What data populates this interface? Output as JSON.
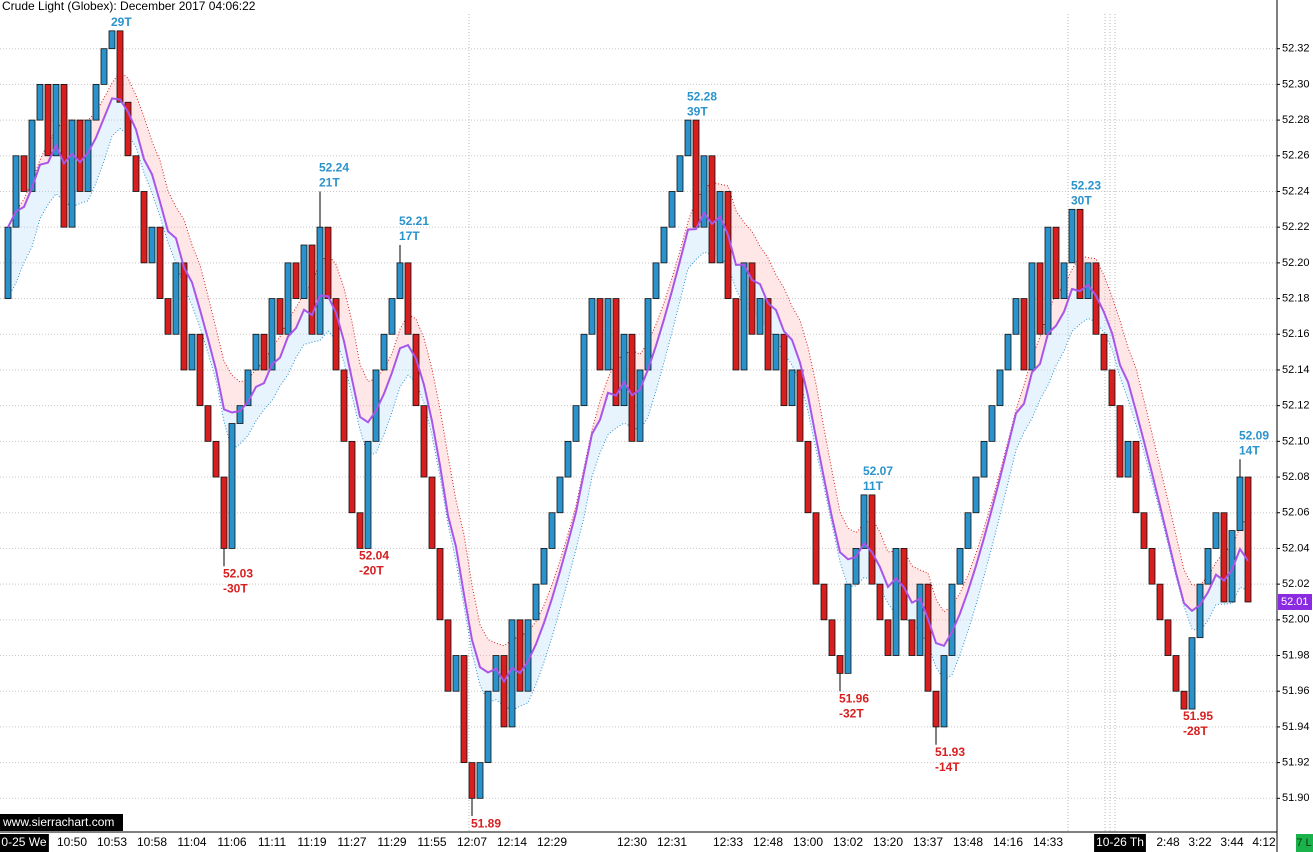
{
  "chart_data": {
    "type": "candlestick",
    "title": "Crude Light (Globex): December 2017 04:06:22",
    "categories": [
      null,
      null,
      "0-25 We",
      null,
      null,
      null,
      null,
      null,
      "10:50",
      null,
      null,
      null,
      null,
      "10:53",
      null,
      null,
      null,
      null,
      "10:58",
      null,
      null,
      null,
      null,
      "11:04",
      null,
      null,
      null,
      null,
      "11:06",
      null,
      null,
      null,
      null,
      "11:11",
      null,
      null,
      null,
      null,
      "11:19",
      null,
      null,
      null,
      null,
      "11:27",
      null,
      null,
      null,
      null,
      "11:29",
      null,
      null,
      null,
      null,
      "11:55",
      null,
      null,
      null,
      null,
      "12:07",
      null,
      null,
      null,
      null,
      "12:14",
      null,
      null,
      null,
      null,
      "12:29",
      null,
      null,
      null,
      null,
      null,
      null,
      null,
      null,
      null,
      "12:30",
      null,
      null,
      null,
      null,
      "12:31",
      null,
      null,
      null,
      null,
      null,
      null,
      "12:33",
      null,
      null,
      null,
      null,
      "12:48",
      null,
      null,
      null,
      null,
      "13:00",
      null,
      null,
      null,
      null,
      "13:02",
      null,
      null,
      null,
      null,
      "13:20",
      null,
      null,
      null,
      null,
      "13:37",
      null,
      null,
      null,
      null,
      "13:48",
      null,
      null,
      null,
      null,
      "14:16",
      null,
      null,
      null,
      null,
      "14:33",
      null,
      null,
      null,
      null,
      null,
      null,
      null,
      null,
      "10-26 Th",
      null,
      null,
      null,
      null,
      null,
      "2:48",
      null,
      null,
      null,
      "3:22",
      null,
      null,
      null,
      "3:44",
      null,
      null,
      null,
      "4:12"
    ],
    "open": [
      52.18,
      52.22,
      52.26,
      52.24,
      52.28,
      52.3,
      52.26,
      52.3,
      52.22,
      52.28,
      52.24,
      52.28,
      52.3,
      52.32,
      52.33,
      52.29,
      52.26,
      52.24,
      52.2,
      52.22,
      52.18,
      52.16,
      52.2,
      52.14,
      52.16,
      52.12,
      52.1,
      52.08,
      52.04,
      52.11,
      52.12,
      52.14,
      52.16,
      52.14,
      52.18,
      52.16,
      52.2,
      52.18,
      52.21,
      52.16,
      52.22,
      52.18,
      52.14,
      52.1,
      52.06,
      52.04,
      52.1,
      52.14,
      52.16,
      52.18,
      52.2,
      52.16,
      52.12,
      52.08,
      52.04,
      52.0,
      51.96,
      51.98,
      51.92,
      51.9,
      51.92,
      51.96,
      51.98,
      51.94,
      52.0,
      51.96,
      52.0,
      52.02,
      52.04,
      52.06,
      52.08,
      52.1,
      52.12,
      52.16,
      52.18,
      52.14,
      52.18,
      52.12,
      52.16,
      52.1,
      52.14,
      52.18,
      52.2,
      52.22,
      52.24,
      52.26,
      52.28,
      52.22,
      52.26,
      52.2,
      52.24,
      52.18,
      52.14,
      52.2,
      52.16,
      52.18,
      52.14,
      52.16,
      52.12,
      52.14,
      52.1,
      52.06,
      52.02,
      52.0,
      51.98,
      51.97,
      52.02,
      52.04,
      52.07,
      52.02,
      52.0,
      51.98,
      52.04,
      52.0,
      51.98,
      52.02,
      51.96,
      51.94,
      51.98,
      52.02,
      52.04,
      52.06,
      52.08,
      52.1,
      52.12,
      52.14,
      52.16,
      52.18,
      52.14,
      52.2,
      52.16,
      52.22,
      52.18,
      52.2,
      52.23,
      52.18,
      52.2,
      52.16,
      52.14,
      52.12,
      52.08,
      52.1,
      52.06,
      52.04,
      52.02,
      52.0,
      51.98,
      51.96,
      51.95,
      51.99,
      52.02,
      52.04,
      52.06,
      52.01,
      52.05,
      52.08,
      null,
      null
    ],
    "high": [
      52.22,
      52.26,
      52.26,
      52.28,
      52.3,
      52.3,
      52.3,
      52.3,
      52.28,
      52.28,
      52.28,
      52.3,
      52.32,
      52.33,
      52.33,
      52.29,
      52.26,
      52.24,
      52.22,
      52.22,
      52.18,
      52.2,
      52.2,
      52.16,
      52.16,
      52.12,
      52.1,
      52.08,
      52.11,
      52.12,
      52.14,
      52.16,
      52.16,
      52.18,
      52.18,
      52.2,
      52.2,
      52.21,
      52.21,
      52.24,
      52.22,
      52.18,
      52.14,
      52.1,
      52.06,
      52.1,
      52.14,
      52.16,
      52.18,
      52.21,
      52.2,
      52.16,
      52.12,
      52.08,
      52.04,
      52.0,
      51.98,
      51.98,
      51.92,
      51.92,
      51.96,
      51.98,
      51.98,
      52.0,
      52.0,
      52.0,
      52.02,
      52.04,
      52.06,
      52.08,
      52.1,
      52.12,
      52.16,
      52.18,
      52.18,
      52.18,
      52.18,
      52.16,
      52.16,
      52.14,
      52.18,
      52.2,
      52.22,
      52.24,
      52.26,
      52.28,
      52.28,
      52.26,
      52.26,
      52.24,
      52.24,
      52.18,
      52.2,
      52.2,
      52.18,
      52.18,
      52.16,
      52.16,
      52.14,
      52.14,
      52.1,
      52.06,
      52.02,
      52.0,
      51.98,
      52.02,
      52.04,
      52.07,
      52.07,
      52.02,
      52.0,
      52.04,
      52.04,
      52.0,
      52.02,
      52.02,
      51.96,
      51.98,
      52.02,
      52.04,
      52.06,
      52.08,
      52.1,
      52.12,
      52.14,
      52.16,
      52.18,
      52.18,
      52.2,
      52.2,
      52.22,
      52.22,
      52.2,
      52.23,
      52.23,
      52.2,
      52.2,
      52.16,
      52.14,
      52.12,
      52.1,
      52.1,
      52.06,
      52.04,
      52.02,
      52.0,
      51.98,
      51.96,
      51.99,
      52.02,
      52.04,
      52.06,
      52.06,
      52.05,
      52.09,
      52.08,
      null,
      null
    ],
    "low": [
      52.18,
      52.22,
      52.24,
      52.24,
      52.28,
      52.26,
      52.26,
      52.22,
      52.22,
      52.24,
      52.24,
      52.28,
      52.3,
      52.32,
      52.29,
      52.26,
      52.24,
      52.2,
      52.2,
      52.18,
      52.16,
      52.16,
      52.14,
      52.14,
      52.12,
      52.1,
      52.08,
      52.03,
      52.04,
      52.11,
      52.12,
      52.14,
      52.14,
      52.14,
      52.16,
      52.16,
      52.18,
      52.18,
      52.16,
      52.16,
      52.18,
      52.14,
      52.1,
      52.06,
      52.04,
      52.04,
      52.1,
      52.14,
      52.16,
      52.18,
      52.16,
      52.12,
      52.08,
      52.04,
      52.0,
      51.96,
      51.96,
      51.92,
      51.89,
      51.9,
      51.92,
      51.96,
      51.94,
      51.94,
      51.96,
      51.96,
      52.0,
      52.02,
      52.04,
      52.06,
      52.08,
      52.1,
      52.12,
      52.16,
      52.14,
      52.14,
      52.12,
      52.12,
      52.1,
      52.1,
      52.14,
      52.18,
      52.2,
      52.22,
      52.24,
      52.26,
      52.22,
      52.22,
      52.2,
      52.2,
      52.18,
      52.14,
      52.14,
      52.16,
      52.16,
      52.14,
      52.14,
      52.12,
      52.12,
      52.1,
      52.06,
      52.02,
      52.0,
      51.98,
      51.96,
      51.97,
      52.02,
      52.04,
      52.02,
      52.0,
      51.98,
      51.98,
      52.0,
      51.98,
      51.98,
      51.96,
      51.93,
      51.94,
      51.98,
      52.02,
      52.04,
      52.06,
      52.08,
      52.1,
      52.12,
      52.14,
      52.16,
      52.14,
      52.14,
      52.16,
      52.16,
      52.18,
      52.18,
      52.2,
      52.18,
      52.18,
      52.16,
      52.14,
      52.12,
      52.08,
      52.08,
      52.06,
      52.04,
      52.02,
      52.0,
      51.98,
      51.96,
      51.95,
      51.95,
      51.99,
      52.02,
      52.04,
      52.01,
      52.01,
      52.05,
      52.01,
      null,
      null
    ],
    "close": [
      52.22,
      52.26,
      52.24,
      52.28,
      52.3,
      52.26,
      52.3,
      52.22,
      52.28,
      52.24,
      52.28,
      52.3,
      52.32,
      52.33,
      52.29,
      52.26,
      52.24,
      52.2,
      52.22,
      52.18,
      52.16,
      52.2,
      52.14,
      52.16,
      52.12,
      52.1,
      52.08,
      52.04,
      52.11,
      52.12,
      52.14,
      52.16,
      52.14,
      52.18,
      52.16,
      52.2,
      52.18,
      52.21,
      52.16,
      52.22,
      52.18,
      52.14,
      52.1,
      52.06,
      52.04,
      52.1,
      52.14,
      52.16,
      52.18,
      52.2,
      52.16,
      52.12,
      52.08,
      52.04,
      52.0,
      51.96,
      51.98,
      51.92,
      51.9,
      51.92,
      51.96,
      51.98,
      51.94,
      52.0,
      51.96,
      52.0,
      52.02,
      52.04,
      52.06,
      52.08,
      52.1,
      52.12,
      52.16,
      52.18,
      52.14,
      52.18,
      52.12,
      52.16,
      52.1,
      52.14,
      52.18,
      52.2,
      52.22,
      52.24,
      52.26,
      52.28,
      52.22,
      52.26,
      52.2,
      52.24,
      52.18,
      52.14,
      52.2,
      52.16,
      52.18,
      52.14,
      52.16,
      52.12,
      52.14,
      52.1,
      52.06,
      52.02,
      52.0,
      51.98,
      51.97,
      52.02,
      52.04,
      52.07,
      52.02,
      52.0,
      51.98,
      52.04,
      52.0,
      51.98,
      52.02,
      51.96,
      51.94,
      51.98,
      52.02,
      52.04,
      52.06,
      52.08,
      52.1,
      52.12,
      52.14,
      52.16,
      52.18,
      52.14,
      52.2,
      52.16,
      52.22,
      52.18,
      52.2,
      52.23,
      52.18,
      52.2,
      52.16,
      52.14,
      52.12,
      52.08,
      52.1,
      52.06,
      52.04,
      52.02,
      52.0,
      51.98,
      51.96,
      51.95,
      51.99,
      52.02,
      52.04,
      52.06,
      52.01,
      52.05,
      52.08,
      52.01,
      null,
      null
    ],
    "up_color": "#2b93cc",
    "down_color": "#d81e1e",
    "ylim": [
      51.88,
      52.34
    ],
    "yticks": [
      {
        "value": 51.9,
        "label": "51.90"
      },
      51.92,
      51.94,
      51.96,
      51.98,
      {
        "value": 52,
        "label": "52.00"
      },
      52.02,
      52.04,
      52.06,
      52.08,
      {
        "value": 52.1,
        "label": "52.10"
      },
      52.12,
      52.14,
      52.16,
      52.18,
      {
        "value": 52.2,
        "label": "52.20"
      },
      52.22,
      52.24,
      52.26,
      52.28,
      {
        "value": 52.3,
        "label": "52.30"
      },
      52.32
    ],
    "grid": true,
    "annotations": [
      {
        "value": 52.33,
        "label": "29T"
      },
      {
        "value": 52.03,
        "label": "-30T"
      },
      {
        "value": 52.24,
        "label": "21T"
      },
      {
        "value": 52.04,
        "label": "-20T"
      },
      {
        "value": 52.21,
        "label": "17T"
      },
      {
        "value": 51.89
      },
      {
        "value": 52.28,
        "label": "39T"
      },
      {
        "value": 51.96,
        "label": "-32T"
      },
      {
        "value": 52.07,
        "label": "11T"
      },
      {
        "value": 51.93,
        "label": "-14T"
      },
      {
        "value": 52.23,
        "label": "30T"
      },
      {
        "value": 51.95,
        "label": "-28T"
      },
      {
        "value": 52.09,
        "label": "14T"
      }
    ],
    "moving_average": {
      "period": 8,
      "color": "#a855e8"
    },
    "last_price_color": "#8a2be2"
  },
  "footer": {
    "watermark": "www.sierrachart.com",
    "status": "7 L"
  }
}
